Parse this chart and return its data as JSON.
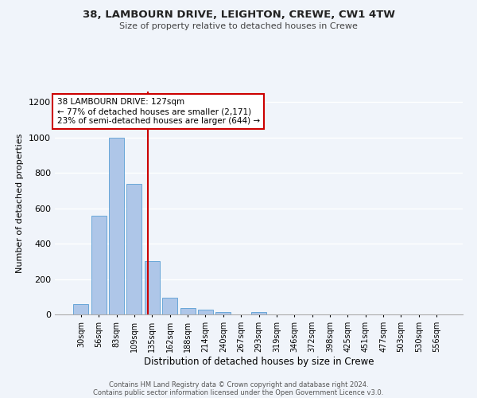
{
  "title1": "38, LAMBOURN DRIVE, LEIGHTON, CREWE, CW1 4TW",
  "title2": "Size of property relative to detached houses in Crewe",
  "xlabel": "Distribution of detached houses by size in Crewe",
  "ylabel": "Number of detached properties",
  "bin_labels": [
    "30sqm",
    "56sqm",
    "83sqm",
    "109sqm",
    "135sqm",
    "162sqm",
    "188sqm",
    "214sqm",
    "240sqm",
    "267sqm",
    "293sqm",
    "319sqm",
    "346sqm",
    "372sqm",
    "398sqm",
    "425sqm",
    "451sqm",
    "477sqm",
    "503sqm",
    "530sqm",
    "556sqm"
  ],
  "bar_heights": [
    60,
    560,
    1000,
    740,
    300,
    95,
    35,
    25,
    15,
    0,
    15,
    0,
    0,
    0,
    0,
    0,
    0,
    0,
    0,
    0,
    0
  ],
  "bar_color": "#aec6e8",
  "bar_edge_color": "#5a9fd4",
  "background_color": "#f0f4fa",
  "grid_color": "#d8e4f0",
  "red_line_x": 3.77,
  "annotation_title": "38 LAMBOURN DRIVE: 127sqm",
  "annotation_line1": "← 77% of detached houses are smaller (2,171)",
  "annotation_line2": "23% of semi-detached houses are larger (644) →",
  "annotation_box_color": "#ffffff",
  "annotation_box_edge": "#cc0000",
  "red_line_color": "#cc0000",
  "ylim": [
    0,
    1260
  ],
  "yticks": [
    0,
    200,
    400,
    600,
    800,
    1000,
    1200
  ],
  "footer1": "Contains HM Land Registry data © Crown copyright and database right 2024.",
  "footer2": "Contains public sector information licensed under the Open Government Licence v3.0."
}
